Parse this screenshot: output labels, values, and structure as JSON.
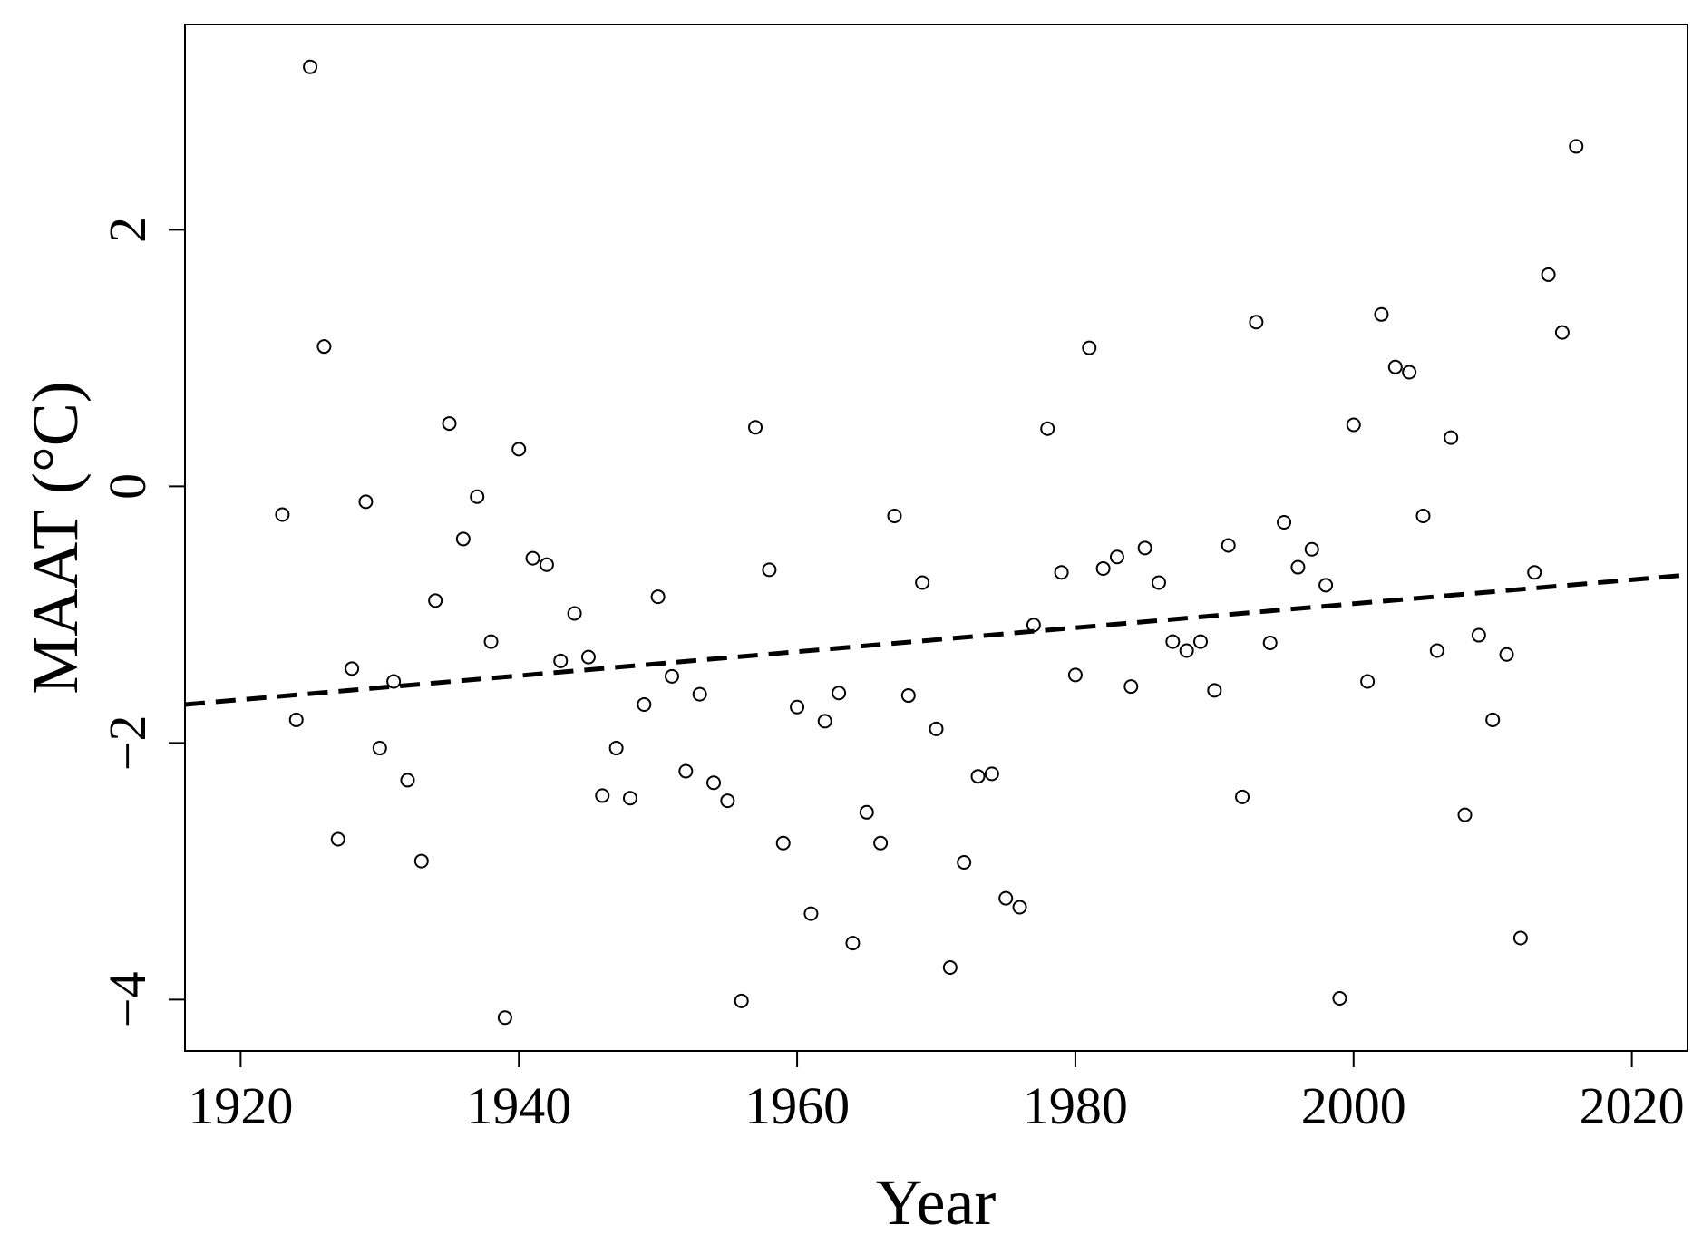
{
  "chart_data": {
    "type": "scatter",
    "title": "",
    "xlabel": "Year",
    "ylabel": "MAAT (°C)",
    "xlim": [
      1916,
      2024
    ],
    "ylim": [
      -4.4,
      3.6
    ],
    "xticks": [
      1920,
      1940,
      1960,
      1980,
      2000,
      2020
    ],
    "xtick_labels": [
      "1920",
      "1940",
      "1960",
      "1980",
      "2000",
      "2020"
    ],
    "yticks": [
      -4,
      -2,
      0,
      2
    ],
    "ytick_labels": [
      "−4",
      "−2",
      "0",
      "2"
    ],
    "grid": false,
    "legend": "none",
    "marker": "open-circle",
    "trend_line": {
      "style": "dashed",
      "x": [
        1916,
        2024
      ],
      "y": [
        -1.7,
        -0.69
      ]
    },
    "points": [
      [
        1923,
        -0.22
      ],
      [
        1924,
        -1.82
      ],
      [
        1925,
        3.27
      ],
      [
        1926,
        1.09
      ],
      [
        1927,
        -2.75
      ],
      [
        1928,
        -1.42
      ],
      [
        1929,
        -0.12
      ],
      [
        1930,
        -2.04
      ],
      [
        1931,
        -1.52
      ],
      [
        1932,
        -2.29
      ],
      [
        1933,
        -2.92
      ],
      [
        1934,
        -0.89
      ],
      [
        1935,
        0.49
      ],
      [
        1936,
        -0.41
      ],
      [
        1937,
        -0.08
      ],
      [
        1938,
        -1.21
      ],
      [
        1939,
        -4.14
      ],
      [
        1940,
        0.29
      ],
      [
        1941,
        -0.56
      ],
      [
        1942,
        -0.61
      ],
      [
        1943,
        -1.36
      ],
      [
        1944,
        -0.99
      ],
      [
        1945,
        -1.33
      ],
      [
        1946,
        -2.41
      ],
      [
        1947,
        -2.04
      ],
      [
        1948,
        -2.43
      ],
      [
        1949,
        -1.7
      ],
      [
        1950,
        -0.86
      ],
      [
        1951,
        -1.48
      ],
      [
        1952,
        -2.22
      ],
      [
        1953,
        -1.62
      ],
      [
        1954,
        -2.31
      ],
      [
        1955,
        -2.45
      ],
      [
        1956,
        -4.01
      ],
      [
        1957,
        0.46
      ],
      [
        1958,
        -0.65
      ],
      [
        1959,
        -2.78
      ],
      [
        1960,
        -1.72
      ],
      [
        1961,
        -3.33
      ],
      [
        1962,
        -1.83
      ],
      [
        1963,
        -1.61
      ],
      [
        1964,
        -3.56
      ],
      [
        1965,
        -2.54
      ],
      [
        1966,
        -2.78
      ],
      [
        1967,
        -0.23
      ],
      [
        1968,
        -1.63
      ],
      [
        1969,
        -0.75
      ],
      [
        1970,
        -1.89
      ],
      [
        1971,
        -3.75
      ],
      [
        1972,
        -2.93
      ],
      [
        1973,
        -2.26
      ],
      [
        1974,
        -2.24
      ],
      [
        1975,
        -3.21
      ],
      [
        1976,
        -3.28
      ],
      [
        1977,
        -1.08
      ],
      [
        1978,
        0.45
      ],
      [
        1979,
        -0.67
      ],
      [
        1980,
        -1.47
      ],
      [
        1981,
        1.08
      ],
      [
        1982,
        -0.64
      ],
      [
        1983,
        -0.55
      ],
      [
        1984,
        -1.56
      ],
      [
        1985,
        -0.48
      ],
      [
        1986,
        -0.75
      ],
      [
        1987,
        -1.21
      ],
      [
        1988,
        -1.28
      ],
      [
        1989,
        -1.21
      ],
      [
        1990,
        -1.59
      ],
      [
        1991,
        -0.46
      ],
      [
        1992,
        -2.42
      ],
      [
        1993,
        1.28
      ],
      [
        1994,
        -1.22
      ],
      [
        1995,
        -0.28
      ],
      [
        1996,
        -0.63
      ],
      [
        1997,
        -0.49
      ],
      [
        1998,
        -0.77
      ],
      [
        1999,
        -3.99
      ],
      [
        2000,
        0.48
      ],
      [
        2001,
        -1.52
      ],
      [
        2002,
        1.34
      ],
      [
        2003,
        0.93
      ],
      [
        2004,
        0.89
      ],
      [
        2005,
        -0.23
      ],
      [
        2006,
        -1.28
      ],
      [
        2007,
        0.38
      ],
      [
        2008,
        -2.56
      ],
      [
        2009,
        -1.16
      ],
      [
        2010,
        -1.82
      ],
      [
        2011,
        -1.31
      ],
      [
        2012,
        -3.52
      ],
      [
        2013,
        -0.67
      ],
      [
        2014,
        1.65
      ],
      [
        2015,
        1.2
      ],
      [
        2016,
        2.65
      ]
    ]
  }
}
